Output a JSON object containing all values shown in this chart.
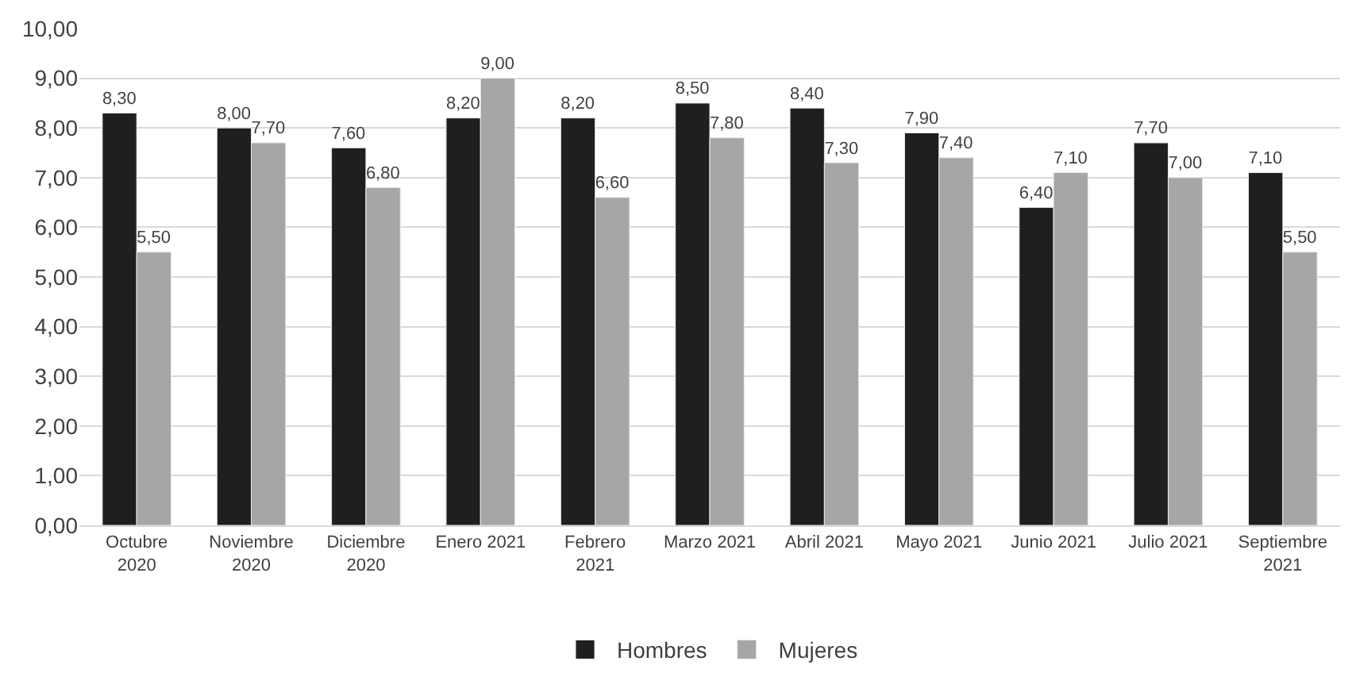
{
  "chart_data": {
    "type": "bar",
    "categories": [
      "Octubre 2020",
      "Noviembre 2020",
      "Diciembre 2020",
      "Enero 2021",
      "Febrero 2021",
      "Marzo 2021",
      "Abril 2021",
      "Mayo 2021",
      "Junio 2021",
      "Julio 2021",
      "Septiembre 2021"
    ],
    "series": [
      {
        "name": "Hombres",
        "color": "#1f1f1f",
        "values": [
          8.3,
          8.0,
          7.6,
          8.2,
          8.2,
          8.5,
          8.4,
          7.9,
          6.4,
          7.7,
          7.1
        ],
        "value_labels": [
          "8,30",
          "8,00",
          "7,60",
          "8,20",
          "8,20",
          "8,50",
          "8,40",
          "7,90",
          "6,40",
          "7,70",
          "7,10"
        ]
      },
      {
        "name": "Mujeres",
        "color": "#a6a6a6",
        "values": [
          5.5,
          7.7,
          6.8,
          9.0,
          6.6,
          7.8,
          7.3,
          7.4,
          7.1,
          7.0,
          5.5
        ],
        "value_labels": [
          "5,50",
          "7,70",
          "6,80",
          "9,00",
          "6,60",
          "7,80",
          "7,30",
          "7,40",
          "7,10",
          "7,00",
          "5,50"
        ]
      }
    ],
    "ylim": [
      0,
      10
    ],
    "yticks": [
      {
        "value": 0,
        "label": "0,00"
      },
      {
        "value": 1,
        "label": "1,00"
      },
      {
        "value": 2,
        "label": "2,00"
      },
      {
        "value": 3,
        "label": "3,00"
      },
      {
        "value": 4,
        "label": "4,00"
      },
      {
        "value": 5,
        "label": "5,00"
      },
      {
        "value": 6,
        "label": "6,00"
      },
      {
        "value": 7,
        "label": "7,00"
      },
      {
        "value": 8,
        "label": "8,00"
      },
      {
        "value": 9,
        "label": "9,00"
      },
      {
        "value": 10,
        "label": "10,00"
      }
    ],
    "grid": "y",
    "legend": "bottom"
  }
}
